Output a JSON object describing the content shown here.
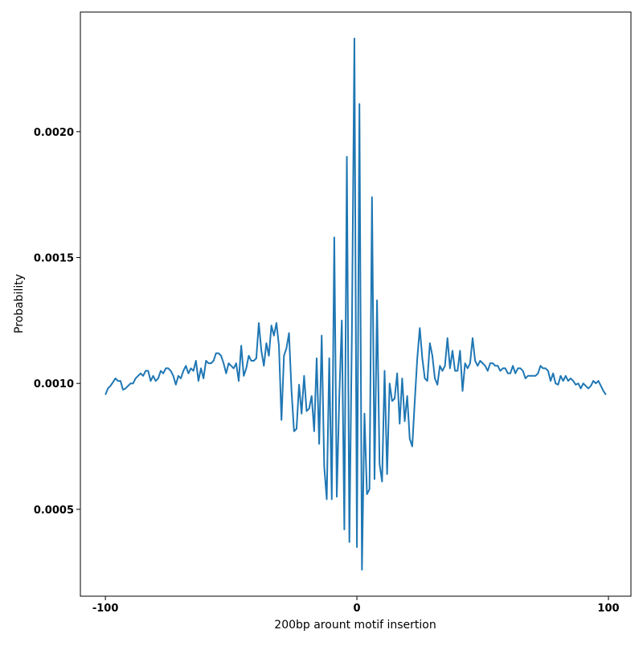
{
  "chart_data": {
    "type": "line",
    "xlabel": "200bp arount motif insertion",
    "ylabel": "Probability",
    "x": [
      -100,
      -99,
      -98,
      -97,
      -96,
      -95,
      -94,
      -93,
      -92,
      -91,
      -90,
      -89,
      -88,
      -87,
      -86,
      -85,
      -84,
      -83,
      -82,
      -81,
      -80,
      -79,
      -78,
      -77,
      -76,
      -75,
      -74,
      -73,
      -72,
      -71,
      -70,
      -69,
      -68,
      -67,
      -66,
      -65,
      -64,
      -63,
      -62,
      -61,
      -60,
      -59,
      -58,
      -57,
      -56,
      -55,
      -54,
      -53,
      -52,
      -51,
      -50,
      -49,
      -48,
      -47,
      -46,
      -45,
      -44,
      -43,
      -42,
      -41,
      -40,
      -39,
      -38,
      -37,
      -36,
      -35,
      -34,
      -33,
      -32,
      -31,
      -30,
      -29,
      -28,
      -27,
      -26,
      -25,
      -24,
      -23,
      -22,
      -21,
      -20,
      -19,
      -18,
      -17,
      -16,
      -15,
      -14,
      -13,
      -12,
      -11,
      -10,
      -9,
      -8,
      -7,
      -6,
      -5,
      -4,
      -3,
      -2,
      -1,
      0,
      1,
      2,
      3,
      4,
      5,
      6,
      7,
      8,
      9,
      10,
      11,
      12,
      13,
      14,
      15,
      16,
      17,
      18,
      19,
      20,
      21,
      22,
      23,
      24,
      25,
      26,
      27,
      28,
      29,
      30,
      31,
      32,
      33,
      34,
      35,
      36,
      37,
      38,
      39,
      40,
      41,
      42,
      43,
      44,
      45,
      46,
      47,
      48,
      49,
      50,
      51,
      52,
      53,
      54,
      55,
      56,
      57,
      58,
      59,
      60,
      61,
      62,
      63,
      64,
      65,
      66,
      67,
      68,
      69,
      70,
      71,
      72,
      73,
      74,
      75,
      76,
      77,
      78,
      79,
      80,
      81,
      82,
      83,
      84,
      85,
      86,
      87,
      88,
      89,
      90,
      91,
      92,
      93,
      94,
      95,
      96,
      97,
      98,
      99
    ],
    "series": [
      {
        "color": "#1f77b4",
        "values": [
          0.000955,
          0.00098,
          0.00099,
          0.001005,
          0.00102,
          0.00101,
          0.00101,
          0.000975,
          0.00098,
          0.00099,
          0.001,
          0.001,
          0.00102,
          0.00103,
          0.00104,
          0.00103,
          0.00105,
          0.00105,
          0.00101,
          0.00103,
          0.00101,
          0.00102,
          0.00105,
          0.00104,
          0.00106,
          0.00106,
          0.00105,
          0.00103,
          0.000995,
          0.00103,
          0.00102,
          0.00105,
          0.00107,
          0.00104,
          0.00106,
          0.00105,
          0.00109,
          0.00101,
          0.00106,
          0.00102,
          0.00109,
          0.00108,
          0.00108,
          0.00109,
          0.00112,
          0.00112,
          0.00111,
          0.00108,
          0.00104,
          0.00108,
          0.00107,
          0.00106,
          0.00108,
          0.00101,
          0.00115,
          0.00103,
          0.00106,
          0.00111,
          0.00109,
          0.00109,
          0.0011,
          0.00124,
          0.00113,
          0.00107,
          0.00116,
          0.00111,
          0.00123,
          0.00119,
          0.00124,
          0.00115,
          0.000855,
          0.00111,
          0.00114,
          0.0012,
          0.00097,
          0.00081,
          0.00082,
          0.000995,
          0.00088,
          0.00103,
          0.00089,
          0.0009,
          0.00095,
          0.00081,
          0.0011,
          0.00076,
          0.00119,
          0.00067,
          0.00054,
          0.0011,
          0.00054,
          0.00158,
          0.00055,
          0.00095,
          0.00125,
          0.00042,
          0.0019,
          0.00037,
          0.0012,
          0.00237,
          0.00035,
          0.00211,
          0.00026,
          0.00088,
          0.00056,
          0.00058,
          0.00174,
          0.00062,
          0.00133,
          0.00068,
          0.00061,
          0.00105,
          0.00064,
          0.001,
          0.00093,
          0.00094,
          0.00104,
          0.00084,
          0.00102,
          0.00085,
          0.00095,
          0.00078,
          0.00075,
          0.00093,
          0.0011,
          0.00122,
          0.0011,
          0.00102,
          0.00101,
          0.00116,
          0.00111,
          0.00102,
          0.000995,
          0.00107,
          0.00105,
          0.00107,
          0.00118,
          0.00106,
          0.00113,
          0.00105,
          0.00105,
          0.00113,
          0.00097,
          0.00108,
          0.00106,
          0.00108,
          0.00118,
          0.00109,
          0.00107,
          0.00109,
          0.00108,
          0.00107,
          0.00105,
          0.00108,
          0.00108,
          0.00107,
          0.00107,
          0.00105,
          0.00106,
          0.00106,
          0.00104,
          0.00104,
          0.00107,
          0.00104,
          0.00106,
          0.00106,
          0.00105,
          0.00102,
          0.00103,
          0.00103,
          0.00103,
          0.00103,
          0.00104,
          0.00107,
          0.00106,
          0.00106,
          0.00105,
          0.00101,
          0.00104,
          0.001,
          0.000995,
          0.00103,
          0.00101,
          0.00103,
          0.00101,
          0.00102,
          0.00101,
          0.000995,
          0.001,
          0.00098,
          0.001,
          0.00099,
          0.00098,
          0.00099,
          0.00101,
          0.001,
          0.00101,
          0.00099,
          0.00097,
          0.000955
        ]
      }
    ],
    "xlim": [
      -109.95,
      108.95
    ],
    "xticks": [
      -100,
      0,
      100
    ],
    "ylim": [
      0.000155,
      0.002475
    ],
    "yticks": [
      0.0005,
      0.0015,
      {
        "value": 0.001,
        "label": "0.0010"
      },
      {
        "value": 0.002,
        "label": "0.0020"
      }
    ]
  }
}
